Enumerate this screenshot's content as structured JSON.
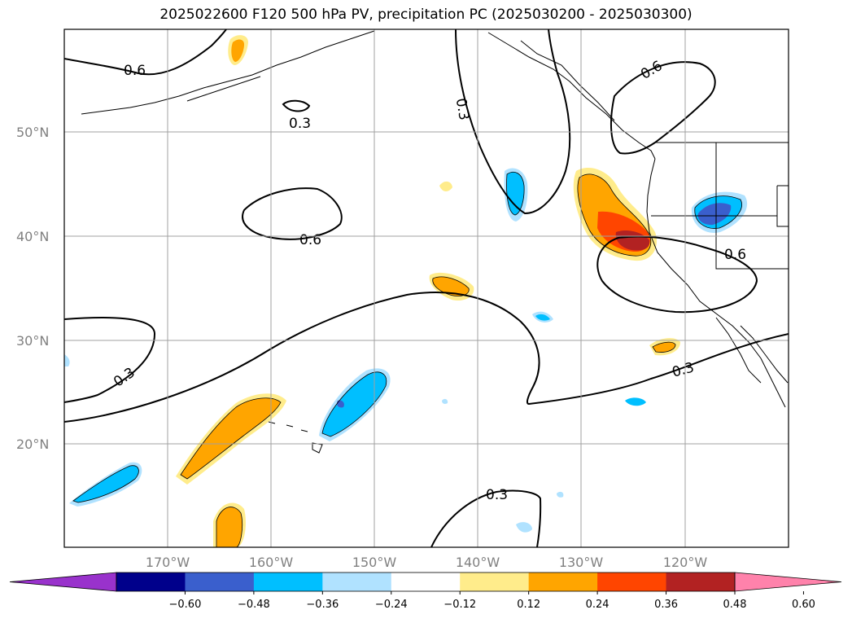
{
  "title": "2025022600 F120 500 hPa PV, precipitation PC (2025030200 - 2025030300)",
  "latitude_labels": [
    "50°N",
    "40°N",
    "30°N",
    "20°N"
  ],
  "longitude_labels": [
    "170°W",
    "160°W",
    "150°W",
    "140°W",
    "130°W",
    "120°W"
  ],
  "pv_contour_labels": [
    "0.6",
    "0.3",
    "0.3",
    "0.6",
    "0.6",
    "0.3",
    "0.6",
    "0.3",
    "0.3"
  ],
  "colorbar": {
    "tick_labels": [
      "−0.60",
      "−0.48",
      "−0.36",
      "−0.24",
      "−0.12",
      "0.12",
      "0.24",
      "0.36",
      "0.48",
      "0.60"
    ],
    "colors": [
      "#9932cc",
      "#00008b",
      "#3a5fcd",
      "#00bfff",
      "#b0e2ff",
      "#ffffff",
      "#ffec8b",
      "#ffa500",
      "#ff4500",
      "#b22222",
      "#ff82ab"
    ]
  }
}
